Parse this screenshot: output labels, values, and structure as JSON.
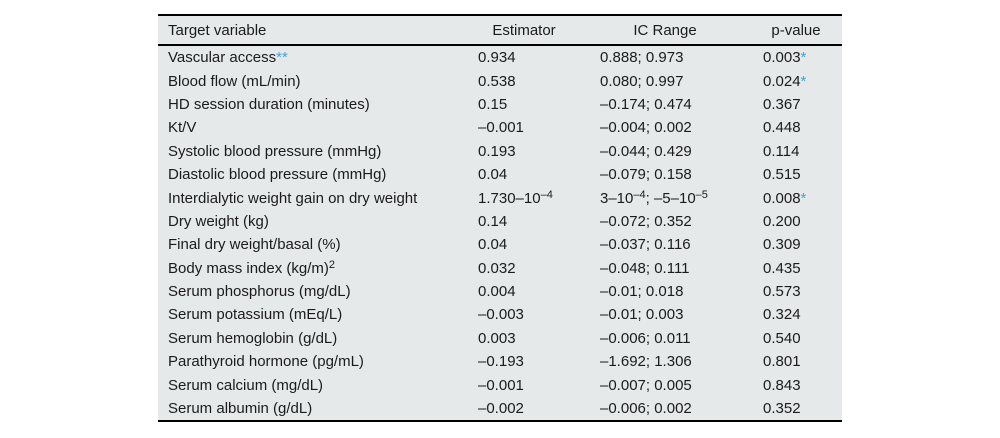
{
  "colors": {
    "accent": "#45a3d9",
    "table_background": "#e6e9e9",
    "rule": "#000000",
    "text": "#1b1b1b",
    "page_background": "#ffffff"
  },
  "table": {
    "columns": [
      "Target variable",
      "Estimator",
      "IC Range",
      "p-value"
    ],
    "rows": [
      {
        "variable": [
          {
            "text": "Vascular access"
          },
          {
            "text": "**",
            "accent": true
          }
        ],
        "estimator": "0.934",
        "ic_range": "0.888; 0.973",
        "p_value": [
          {
            "text": "0.003"
          },
          {
            "text": "*",
            "accent": true
          }
        ]
      },
      {
        "variable": "Blood flow (mL/min)",
        "estimator": "0.538",
        "ic_range": "0.080; 0.997",
        "p_value": [
          {
            "text": "0.024"
          },
          {
            "text": "*",
            "accent": true
          }
        ]
      },
      {
        "variable": "HD session duration (minutes)",
        "estimator": "0.15",
        "ic_range": "–0.174; 0.474",
        "p_value": "0.367"
      },
      {
        "variable": "Kt/V",
        "estimator": "–0.001",
        "ic_range": "–0.004; 0.002",
        "p_value": "0.448"
      },
      {
        "variable": "Systolic blood pressure (mmHg)",
        "estimator": "0.193",
        "ic_range": "–0.044; 0.429",
        "p_value": "0.114"
      },
      {
        "variable": "Diastolic blood pressure (mmHg)",
        "estimator": "0.04",
        "ic_range": "–0.079; 0.158",
        "p_value": "0.515"
      },
      {
        "variable": "Interdialytic weight gain on dry weight",
        "estimator": [
          {
            "text": "1.730–10"
          },
          {
            "text": "–4",
            "sup": true
          }
        ],
        "ic_range": [
          {
            "text": "3–10"
          },
          {
            "text": "–4",
            "sup": true
          },
          {
            "text": "; –5–10"
          },
          {
            "text": "–5",
            "sup": true
          }
        ],
        "p_value": [
          {
            "text": "0.008"
          },
          {
            "text": "*",
            "accent": true
          }
        ]
      },
      {
        "variable": "Dry weight (kg)",
        "estimator": "0.14",
        "ic_range": "–0.072; 0.352",
        "p_value": "0.200"
      },
      {
        "variable": "Final dry weight/basal (%)",
        "estimator": "0.04",
        "ic_range": "–0.037; 0.116",
        "p_value": "0.309"
      },
      {
        "variable": [
          {
            "text": "Body mass index (kg/m)"
          },
          {
            "text": "2",
            "sup": true
          }
        ],
        "estimator": "0.032",
        "ic_range": "–0.048; 0.111",
        "p_value": "0.435"
      },
      {
        "variable": "Serum phosphorus (mg/dL)",
        "estimator": "0.004",
        "ic_range": "–0.01; 0.018",
        "p_value": "0.573"
      },
      {
        "variable": "Serum potassium (mEq/L)",
        "estimator": "–0.003",
        "ic_range": "–0.01; 0.003",
        "p_value": "0.324"
      },
      {
        "variable": "Serum hemoglobin (g/dL)",
        "estimator": "0.003",
        "ic_range": "–0.006; 0.011",
        "p_value": "0.540"
      },
      {
        "variable": "Parathyroid hormone (pg/mL)",
        "estimator": "–0.193",
        "ic_range": "–1.692; 1.306",
        "p_value": "0.801"
      },
      {
        "variable": "Serum calcium (mg/dL)",
        "estimator": "–0.001",
        "ic_range": "–0.007; 0.005",
        "p_value": "0.843"
      },
      {
        "variable": "Serum albumin (g/dL)",
        "estimator": "–0.002",
        "ic_range": "–0.006; 0.002",
        "p_value": "0.352"
      }
    ]
  }
}
